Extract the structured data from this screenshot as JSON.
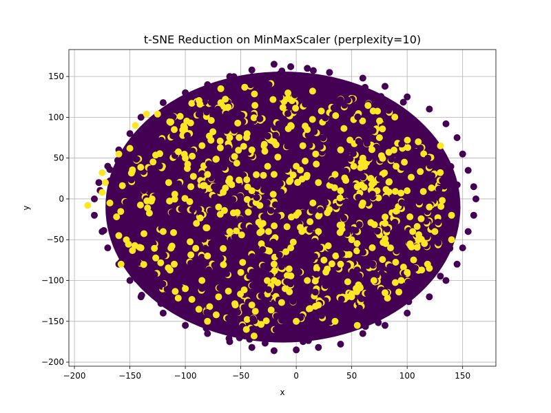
{
  "chart_data": {
    "type": "scatter",
    "title": "t-SNE Reduction on MinMaxScaler (perplexity=10)",
    "xlabel": "x",
    "ylabel": "y",
    "xlim": [
      -205,
      180
    ],
    "ylim": [
      -205,
      183
    ],
    "xticks": [
      -200,
      -150,
      -100,
      -50,
      0,
      50,
      100,
      150
    ],
    "yticks": [
      -200,
      -150,
      -100,
      -50,
      0,
      50,
      100,
      150
    ],
    "xtick_labels": [
      "−200",
      "−150",
      "−100",
      "−50",
      "0",
      "50",
      "100",
      "150"
    ],
    "ytick_labels": [
      "−200",
      "−150",
      "−100",
      "−50",
      "0",
      "50",
      "100",
      "150"
    ],
    "grid": true,
    "colors": {
      "class_0": "#440154",
      "class_1": "#fde725"
    },
    "cloud": {
      "center": [
        -12,
        -10
      ],
      "radius_x": 168,
      "radius_y": 174
    },
    "series": [
      {
        "class": 0,
        "color": "#440154",
        "points": [
          [
            -20,
            165
          ],
          [
            -5,
            162
          ],
          [
            -40,
            158
          ],
          [
            10,
            160
          ],
          [
            30,
            155
          ],
          [
            -60,
            150
          ],
          [
            60,
            148
          ],
          [
            -80,
            140
          ],
          [
            80,
            138
          ],
          [
            -100,
            130
          ],
          [
            100,
            125
          ],
          [
            -120,
            118
          ],
          [
            120,
            110
          ],
          [
            -140,
            100
          ],
          [
            135,
            92
          ],
          [
            -150,
            80
          ],
          [
            145,
            75
          ],
          [
            -160,
            60
          ],
          [
            150,
            55
          ],
          [
            -170,
            40
          ],
          [
            155,
            35
          ],
          [
            -178,
            20
          ],
          [
            160,
            15
          ],
          [
            -182,
            0
          ],
          [
            162,
            0
          ],
          [
            -182,
            -20
          ],
          [
            160,
            -20
          ],
          [
            -175,
            -40
          ],
          [
            155,
            -40
          ],
          [
            -170,
            -60
          ],
          [
            150,
            -60
          ],
          [
            -160,
            -80
          ],
          [
            145,
            -80
          ],
          [
            -150,
            -100
          ],
          [
            135,
            -100
          ],
          [
            -140,
            -120
          ],
          [
            120,
            -120
          ],
          [
            -120,
            -140
          ],
          [
            100,
            -140
          ],
          [
            -100,
            -155
          ],
          [
            80,
            -155
          ],
          [
            -80,
            -165
          ],
          [
            60,
            -165
          ],
          [
            -60,
            -175
          ],
          [
            40,
            -178
          ],
          [
            -40,
            -182
          ],
          [
            20,
            -182
          ],
          [
            -20,
            -186
          ],
          [
            0,
            -185
          ]
        ]
      },
      {
        "class": 1,
        "color": "#fde725",
        "points": [
          [
            -68,
            135
          ],
          [
            -12,
            112
          ],
          [
            -160,
            55
          ],
          [
            -150,
            62
          ],
          [
            -145,
            90
          ],
          [
            -135,
            104
          ],
          [
            -125,
            104
          ],
          [
            -175,
            32
          ],
          [
            -172,
            20
          ],
          [
            -175,
            8
          ],
          [
            -168,
            -5
          ],
          [
            -188,
            -8
          ],
          [
            -162,
            -22
          ],
          [
            -160,
            -45
          ],
          [
            -158,
            -80
          ],
          [
            -110,
            85
          ],
          [
            -60,
            75
          ],
          [
            -40,
            60
          ],
          [
            -20,
            70
          ],
          [
            10,
            85
          ],
          [
            40,
            60
          ],
          [
            60,
            50
          ],
          [
            90,
            40
          ],
          [
            110,
            70
          ],
          [
            130,
            65
          ],
          [
            -100,
            50
          ],
          [
            -80,
            30
          ],
          [
            -60,
            20
          ],
          [
            -40,
            10
          ],
          [
            -20,
            30
          ],
          [
            0,
            40
          ],
          [
            20,
            20
          ],
          [
            40,
            10
          ],
          [
            70,
            20
          ],
          [
            100,
            10
          ],
          [
            120,
            -10
          ],
          [
            140,
            -20
          ],
          [
            125,
            -40
          ],
          [
            140,
            -50
          ],
          [
            110,
            -50
          ],
          [
            80,
            -30
          ],
          [
            50,
            -50
          ],
          [
            20,
            -40
          ],
          [
            0,
            -20
          ],
          [
            -30,
            -30
          ],
          [
            -60,
            -40
          ],
          [
            -90,
            -30
          ],
          [
            -120,
            -40
          ],
          [
            -140,
            -60
          ],
          [
            -110,
            -80
          ],
          [
            -80,
            -70
          ],
          [
            -50,
            -90
          ],
          [
            -20,
            -80
          ],
          [
            10,
            -100
          ],
          [
            40,
            -80
          ],
          [
            70,
            -100
          ],
          [
            100,
            -90
          ],
          [
            120,
            -85
          ],
          [
            -100,
            -110
          ],
          [
            -70,
            -120
          ],
          [
            -40,
            -130
          ],
          [
            -10,
            -110
          ],
          [
            20,
            -130
          ],
          [
            50,
            -120
          ],
          [
            80,
            -115
          ],
          [
            -80,
            -150
          ],
          [
            -45,
            -160
          ],
          [
            -38,
            -168
          ],
          [
            0,
            -150
          ],
          [
            35,
            -150
          ],
          [
            55,
            -155
          ],
          [
            -25,
            -40
          ],
          [
            -5,
            -60
          ],
          [
            -70,
            -10
          ],
          [
            -95,
            15
          ],
          [
            15,
            -5
          ],
          [
            35,
            30
          ],
          [
            60,
            -5
          ],
          [
            85,
            -60
          ],
          [
            -115,
            20
          ],
          [
            -5,
            90
          ],
          [
            -55,
            -130
          ],
          [
            -20,
            -100
          ],
          [
            25,
            -75
          ],
          [
            55,
            15
          ],
          [
            90,
            -15
          ],
          [
            -130,
            0
          ],
          [
            -85,
            -100
          ],
          [
            105,
            -40
          ],
          [
            75,
            75
          ]
        ]
      }
    ]
  }
}
